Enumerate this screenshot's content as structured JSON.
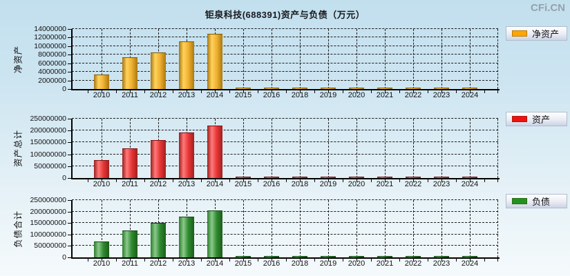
{
  "header": {
    "title": "钜泉科技(688391)资产与负债（万元）",
    "logo": "CFi.CN"
  },
  "chart_data": [
    {
      "type": "bar",
      "title": "钜泉科技(688391)资产与负债（万元）",
      "ylabel": "净资产",
      "legend": "净资产",
      "legend_position": "right",
      "grid": true,
      "categories": [
        "2010",
        "2011",
        "2012",
        "2013",
        "2014",
        "2015",
        "2016",
        "2018",
        "2019",
        "2020",
        "2021",
        "2022",
        "2023",
        "2024"
      ],
      "values": [
        3400000,
        7400000,
        8500000,
        11100000,
        12900000,
        200000,
        200000,
        200000,
        200000,
        200000,
        200000,
        200000,
        200000,
        200000
      ],
      "ylim": [
        0,
        14000000
      ],
      "yticks": [
        0,
        2000000,
        4000000,
        6000000,
        8000000,
        10000000,
        12000000,
        14000000
      ],
      "colors": {
        "legend_swatch": "#ffa500",
        "edge_left": "#a87410",
        "highlight": "#ffd35c",
        "mid": "#f0b031",
        "edge_right": "#aa790f",
        "cap": "#7c5a06"
      }
    },
    {
      "type": "bar",
      "title": "钜泉科技(688391)资产与负债（万元）",
      "ylabel": "资产总计",
      "legend": "资产",
      "legend_position": "right",
      "grid": true,
      "categories": [
        "2010",
        "2011",
        "2012",
        "2013",
        "2014",
        "2015",
        "2016",
        "2018",
        "2019",
        "2020",
        "2021",
        "2022",
        "2023",
        "2024"
      ],
      "values": [
        75000000,
        126000000,
        160000000,
        193000000,
        221000000,
        2000000,
        2000000,
        2000000,
        2000000,
        2000000,
        2000000,
        2000000,
        2000000,
        2000000
      ],
      "ylim": [
        0,
        250000000
      ],
      "yticks": [
        0,
        50000000,
        100000000,
        150000000,
        200000000,
        250000000
      ],
      "colors": {
        "legend_swatch": "#ee1111",
        "edge_left": "#9c1d1d",
        "highlight": "#ff7a7a",
        "mid": "#e93636",
        "edge_right": "#a02020",
        "cap": "#7d1414"
      }
    },
    {
      "type": "bar",
      "title": "钜泉科技(688391)资产与负债（万元）",
      "ylabel": "负债合计",
      "legend": "负债",
      "legend_position": "right",
      "grid": true,
      "categories": [
        "2010",
        "2011",
        "2012",
        "2013",
        "2014",
        "2015",
        "2016",
        "2018",
        "2019",
        "2020",
        "2021",
        "2022",
        "2023",
        "2024"
      ],
      "values": [
        70000000,
        118000000,
        150000000,
        178000000,
        205000000,
        1000000,
        1000000,
        1000000,
        1000000,
        1000000,
        1000000,
        1000000,
        1000000,
        1000000
      ],
      "ylim": [
        0,
        250000000
      ],
      "yticks": [
        0,
        50000000,
        100000000,
        150000000,
        200000000,
        250000000
      ],
      "colors": {
        "legend_swatch": "#22921f",
        "edge_left": "#2d7d2d",
        "highlight": "#8bc98b",
        "mid": "#2f8a2f",
        "edge_right": "#1b5e1b",
        "cap": "#124712"
      }
    }
  ]
}
